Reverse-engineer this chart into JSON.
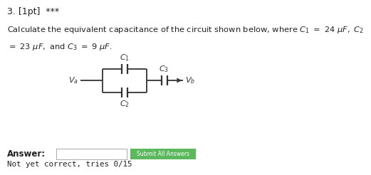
{
  "title_line": "3. [1pt]  ***",
  "problem_line1": "Calculate the equivalent capacitance of the circuit shown below, where $C_1\\ =\\ 24\\ \\mu F,\\ C_2$",
  "problem_line2": "$=\\ 23\\ \\mu F,$ and $C_3\\ =\\ 9\\ \\mu F.$",
  "answer_label": "Answer:",
  "answer_note": "Not yet correct, tries 0/15",
  "button_text": "Submit All Answers",
  "bg_color": "#ffffff",
  "text_color": "#222222",
  "button_color": "#5cb85c",
  "circuit": {
    "Va_label": "$V_a$",
    "Vb_label": "$V_b$",
    "C1_label": "$C_1$",
    "C2_label": "$C_2$",
    "C3_label": "$C_3$"
  }
}
